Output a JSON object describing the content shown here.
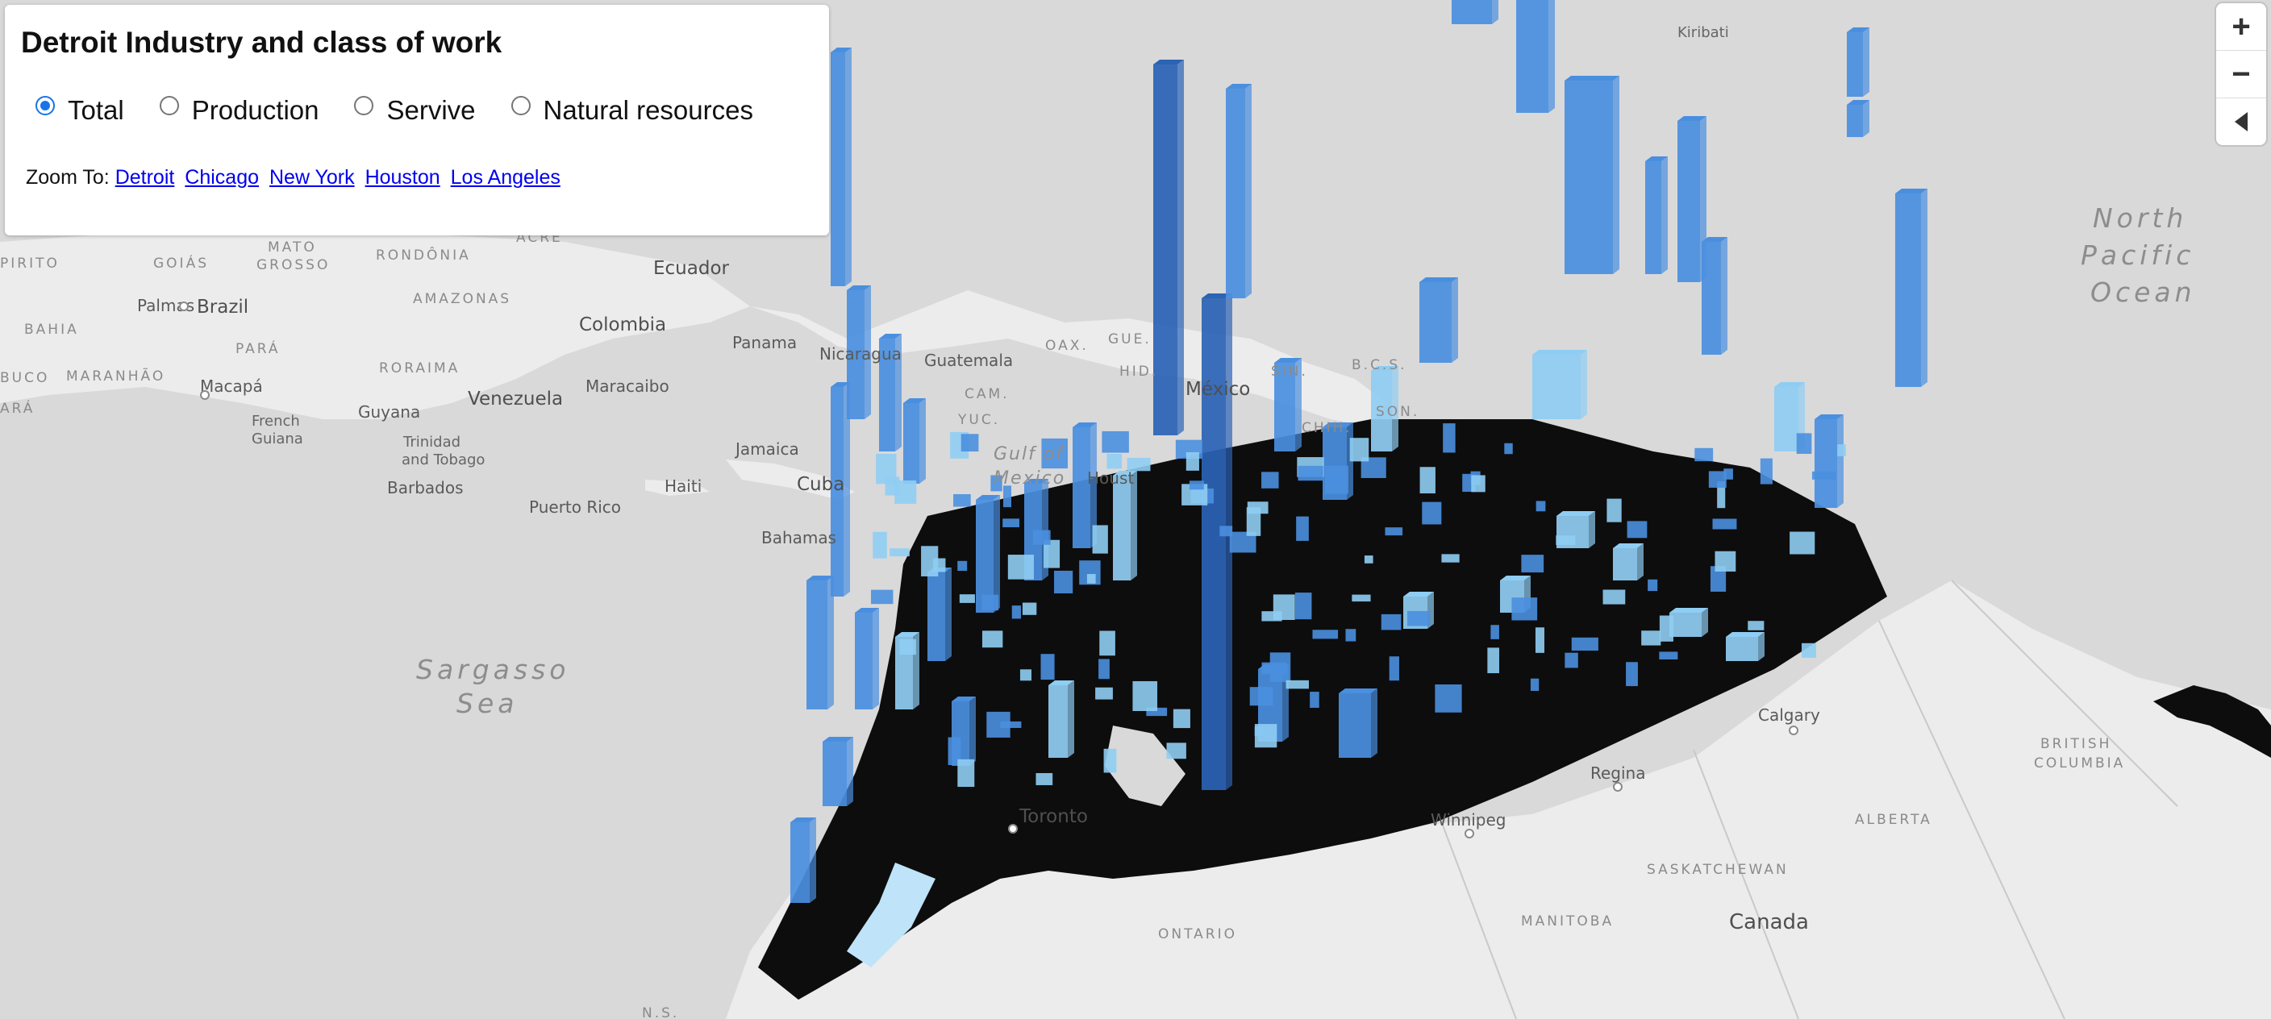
{
  "panel": {
    "title": "Detroit Industry and class of work",
    "options": [
      {
        "label": "Total",
        "checked": true
      },
      {
        "label": "Production",
        "checked": false
      },
      {
        "label": "Servive",
        "checked": false
      },
      {
        "label": "Natural resources",
        "checked": false
      }
    ],
    "zoom_label": "Zoom To:",
    "zoom_links": [
      "Detroit",
      "Chicago",
      "New York",
      "Houston",
      "Los Angeles"
    ]
  },
  "nav": {
    "zoom_in": "+",
    "zoom_out": "−"
  },
  "map_labels": {
    "kiribati": "Kiribati",
    "north_pacific": [
      "North",
      "Pacific",
      "Ocean"
    ],
    "ecuador": "Ecuador",
    "colombia": "Colombia",
    "brazil": "Brazil",
    "panama": "Panama",
    "nicaragua": "Nicaragua",
    "guatemala": "Guatemala",
    "oax": "OAX.",
    "gue": "GUE.",
    "hid": "HID.",
    "mexico": "México",
    "sin": "SIN.",
    "bcs": "B.C.S.",
    "chih": "CHIH.",
    "son": "SON.",
    "cam": "CAM.",
    "yuc": "YUC.",
    "gulf": [
      "Gulf of",
      "Mexico"
    ],
    "houston": "Houst",
    "cuba": "Cuba",
    "jamaica": "Jamaica",
    "haiti": "Haiti",
    "bahamas": "Bahamas",
    "puerto_rico": "Puerto Rico",
    "barbados": "Barbados",
    "trinidad": [
      "Trinidad",
      "and Tobago"
    ],
    "venezuela": "Venezuela",
    "maracaibo": "Maracaibo",
    "guyana": "Guyana",
    "french_guiana": [
      "French",
      "Guiana"
    ],
    "macapa": "Macapá",
    "palmas": "Palmas",
    "bahia": "BAHIA",
    "maranhao": "MARANHÃO",
    "para": "PARÁ",
    "roraima": "RORAIMA",
    "amazonas": "AMAZONAS",
    "mato_grosso": [
      "MATO",
      "GROSSO"
    ],
    "goias": "GOIÁS",
    "rondonia": "RONDÔNIA",
    "acre": "ACRE",
    "pirito": "PIRITO",
    "buco": "BUCO",
    "ara": "ARÁ",
    "sargasso": [
      "Sargasso",
      "Sea"
    ],
    "toronto": "Toronto",
    "ontario": "ONTARIO",
    "winnipeg": "Winnipeg",
    "manitoba": "MANITOBA",
    "regina": "Regina",
    "saskatchewan": "SASKATCHEWAN",
    "calgary": "Calgary",
    "alberta": "ALBERTA",
    "british_columbia": [
      "BRITISH",
      "COLUMBIA"
    ],
    "canada": "Canada",
    "ns": "N.S."
  },
  "colors": {
    "water": "#d9d9d9",
    "land": "#f2f2f2",
    "tract_base": "#0d0d0d",
    "bar_dark": "#2b63b5",
    "bar_mid": "#4a8fdf",
    "bar_light": "#8fcdf3",
    "radio_accent": "#1a73e8"
  }
}
